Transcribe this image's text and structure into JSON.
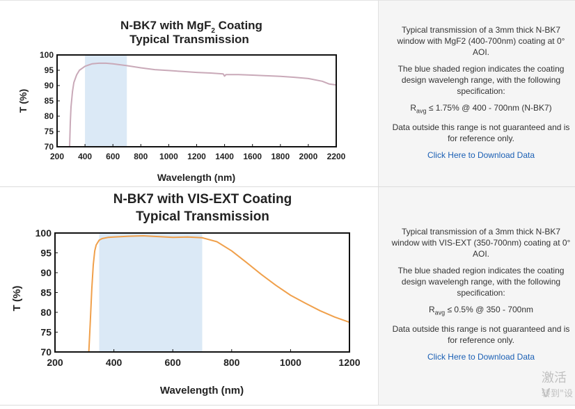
{
  "panels": [
    {
      "description": {
        "line1": "Typical transmission of a 3mm thick N-BK7 window with MgF2 (400-700nm) coating at 0° AOI.",
        "line2": "The blue shaded region indicates the coating design wavelengh range, with the following specification:",
        "spec_prefix": "R",
        "spec_sub": "avg",
        "spec_text": " ≤ 1.75% @ 400 - 700nm (N-BK7)",
        "line3": "Data outside this range is not guaranteed and is for reference only.",
        "link": "Click Here to Download Data"
      }
    },
    {
      "description": {
        "line1": "Typical transmission of a 3mm thick N-BK7 window with VIS-EXT (350-700nm) coating at 0° AOI.",
        "line2": "The blue shaded region indicates the coating design wavelengh range, with the following specification:",
        "spec_prefix": "R",
        "spec_sub": "avg",
        "spec_text": " ≤ 0.5% @ 350 - 700nm",
        "line3": "Data outside this range is not guaranteed and is for reference only.",
        "link": "Click Here to Download Data"
      }
    }
  ],
  "watermark": {
    "line1": "激活 V",
    "line2": "转到\"设"
  },
  "chart_data": [
    {
      "type": "line",
      "title_line1_main": "N-BK7 with MgF",
      "title_line1_sub": "2",
      "title_line1_end": " Coating",
      "title_line2": "Typical Transmission",
      "xlabel": "Wavelength (nm)",
      "ylabel": "T (%)",
      "xlim": [
        200,
        2200
      ],
      "ylim": [
        70,
        100
      ],
      "xticks": [
        200,
        400,
        600,
        800,
        1000,
        1200,
        1400,
        1600,
        1800,
        2000,
        2200
      ],
      "yticks": [
        70,
        75,
        80,
        85,
        90,
        95,
        100
      ],
      "shaded_range": [
        400,
        700
      ],
      "shade_color": "#dbe9f6",
      "line_color": "#c9a9b8",
      "grid": false,
      "series": [
        {
          "x": [
            290,
            295,
            300,
            310,
            320,
            340,
            360,
            400,
            450,
            500,
            550,
            600,
            700,
            800,
            900,
            1000,
            1100,
            1200,
            1300,
            1390,
            1400,
            1410,
            1500,
            1600,
            1700,
            1800,
            1900,
            2000,
            2100,
            2150,
            2200
          ],
          "y": [
            70,
            78,
            83,
            88,
            91,
            93.5,
            95,
            96.3,
            97.1,
            97.3,
            97.3,
            97.1,
            96.5,
            95.8,
            95.2,
            94.9,
            94.6,
            94.3,
            94.1,
            93.8,
            93.1,
            93.6,
            93.6,
            93.4,
            93.2,
            93.0,
            92.7,
            92.3,
            91.4,
            90.5,
            90.2
          ]
        }
      ]
    },
    {
      "type": "line",
      "title_line1": "N-BK7 with VIS-EXT Coating",
      "title_line2": "Typical Transmission",
      "xlabel": "Wavelength (nm)",
      "ylabel": "T (%)",
      "xlim": [
        200,
        1200
      ],
      "ylim": [
        70,
        100
      ],
      "xticks": [
        200,
        400,
        600,
        800,
        1000,
        1200
      ],
      "yticks": [
        70,
        75,
        80,
        85,
        90,
        95,
        100
      ],
      "shaded_range": [
        350,
        700
      ],
      "shade_color": "#dbe9f6",
      "line_color": "#f0a04b",
      "grid": false,
      "series": [
        {
          "x": [
            315,
            320,
            325,
            330,
            335,
            340,
            350,
            360,
            380,
            400,
            450,
            500,
            550,
            600,
            650,
            700,
            750,
            800,
            850,
            900,
            950,
            1000,
            1050,
            1100,
            1150,
            1200
          ],
          "y": [
            70,
            78,
            86,
            92,
            95.5,
            97,
            98.2,
            98.6,
            98.9,
            99.0,
            99.2,
            99.3,
            99.1,
            98.9,
            99.0,
            98.8,
            97.8,
            95.5,
            92.6,
            89.6,
            86.8,
            84.3,
            82.3,
            80.4,
            78.8,
            77.5
          ]
        }
      ]
    }
  ]
}
